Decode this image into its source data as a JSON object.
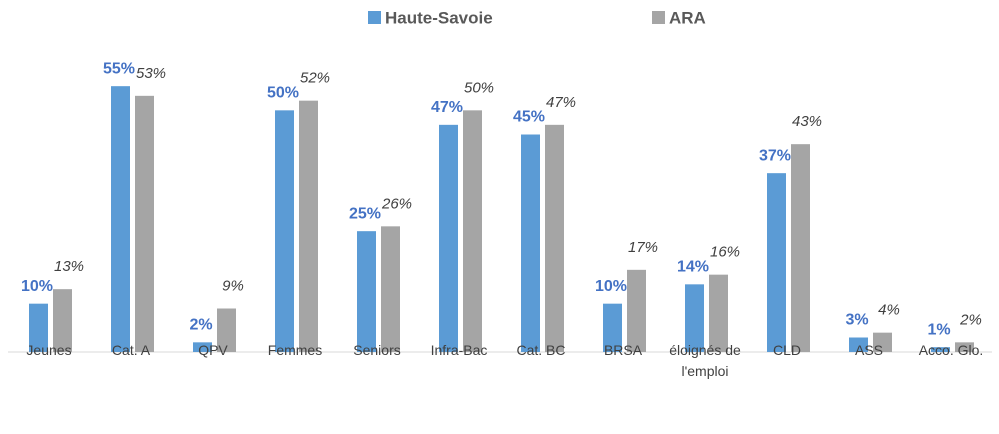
{
  "chart_data": {
    "type": "bar",
    "categories": [
      "Jeunes",
      "Cat. A",
      "QPV",
      "Femmes",
      "Seniors",
      "Infra-Bac",
      "Cat. BC",
      "BRSA",
      "éloignés de l'emploi",
      "CLD",
      "ASS",
      "Acco. Glo."
    ],
    "series": [
      {
        "name": "Haute-Savoie",
        "color": "#5b9bd5",
        "values": [
          10,
          55,
          2,
          50,
          25,
          47,
          45,
          10,
          14,
          37,
          3,
          1
        ],
        "value_labels": [
          "10%",
          "55%",
          "2%",
          "50%",
          "25%",
          "47%",
          "45%",
          "10%",
          "14%",
          "37%",
          "3%",
          "1%"
        ]
      },
      {
        "name": "ARA",
        "color": "#a5a5a5",
        "values": [
          13,
          53,
          9,
          52,
          26,
          50,
          47,
          17,
          16,
          43,
          4,
          2
        ],
        "value_labels": [
          "13%",
          "53%",
          "9%",
          "52%",
          "26%",
          "50%",
          "47%",
          "17%",
          "16%",
          "43%",
          "4%",
          "2%"
        ]
      }
    ],
    "ylim": [
      0,
      60
    ],
    "legend": "top"
  }
}
